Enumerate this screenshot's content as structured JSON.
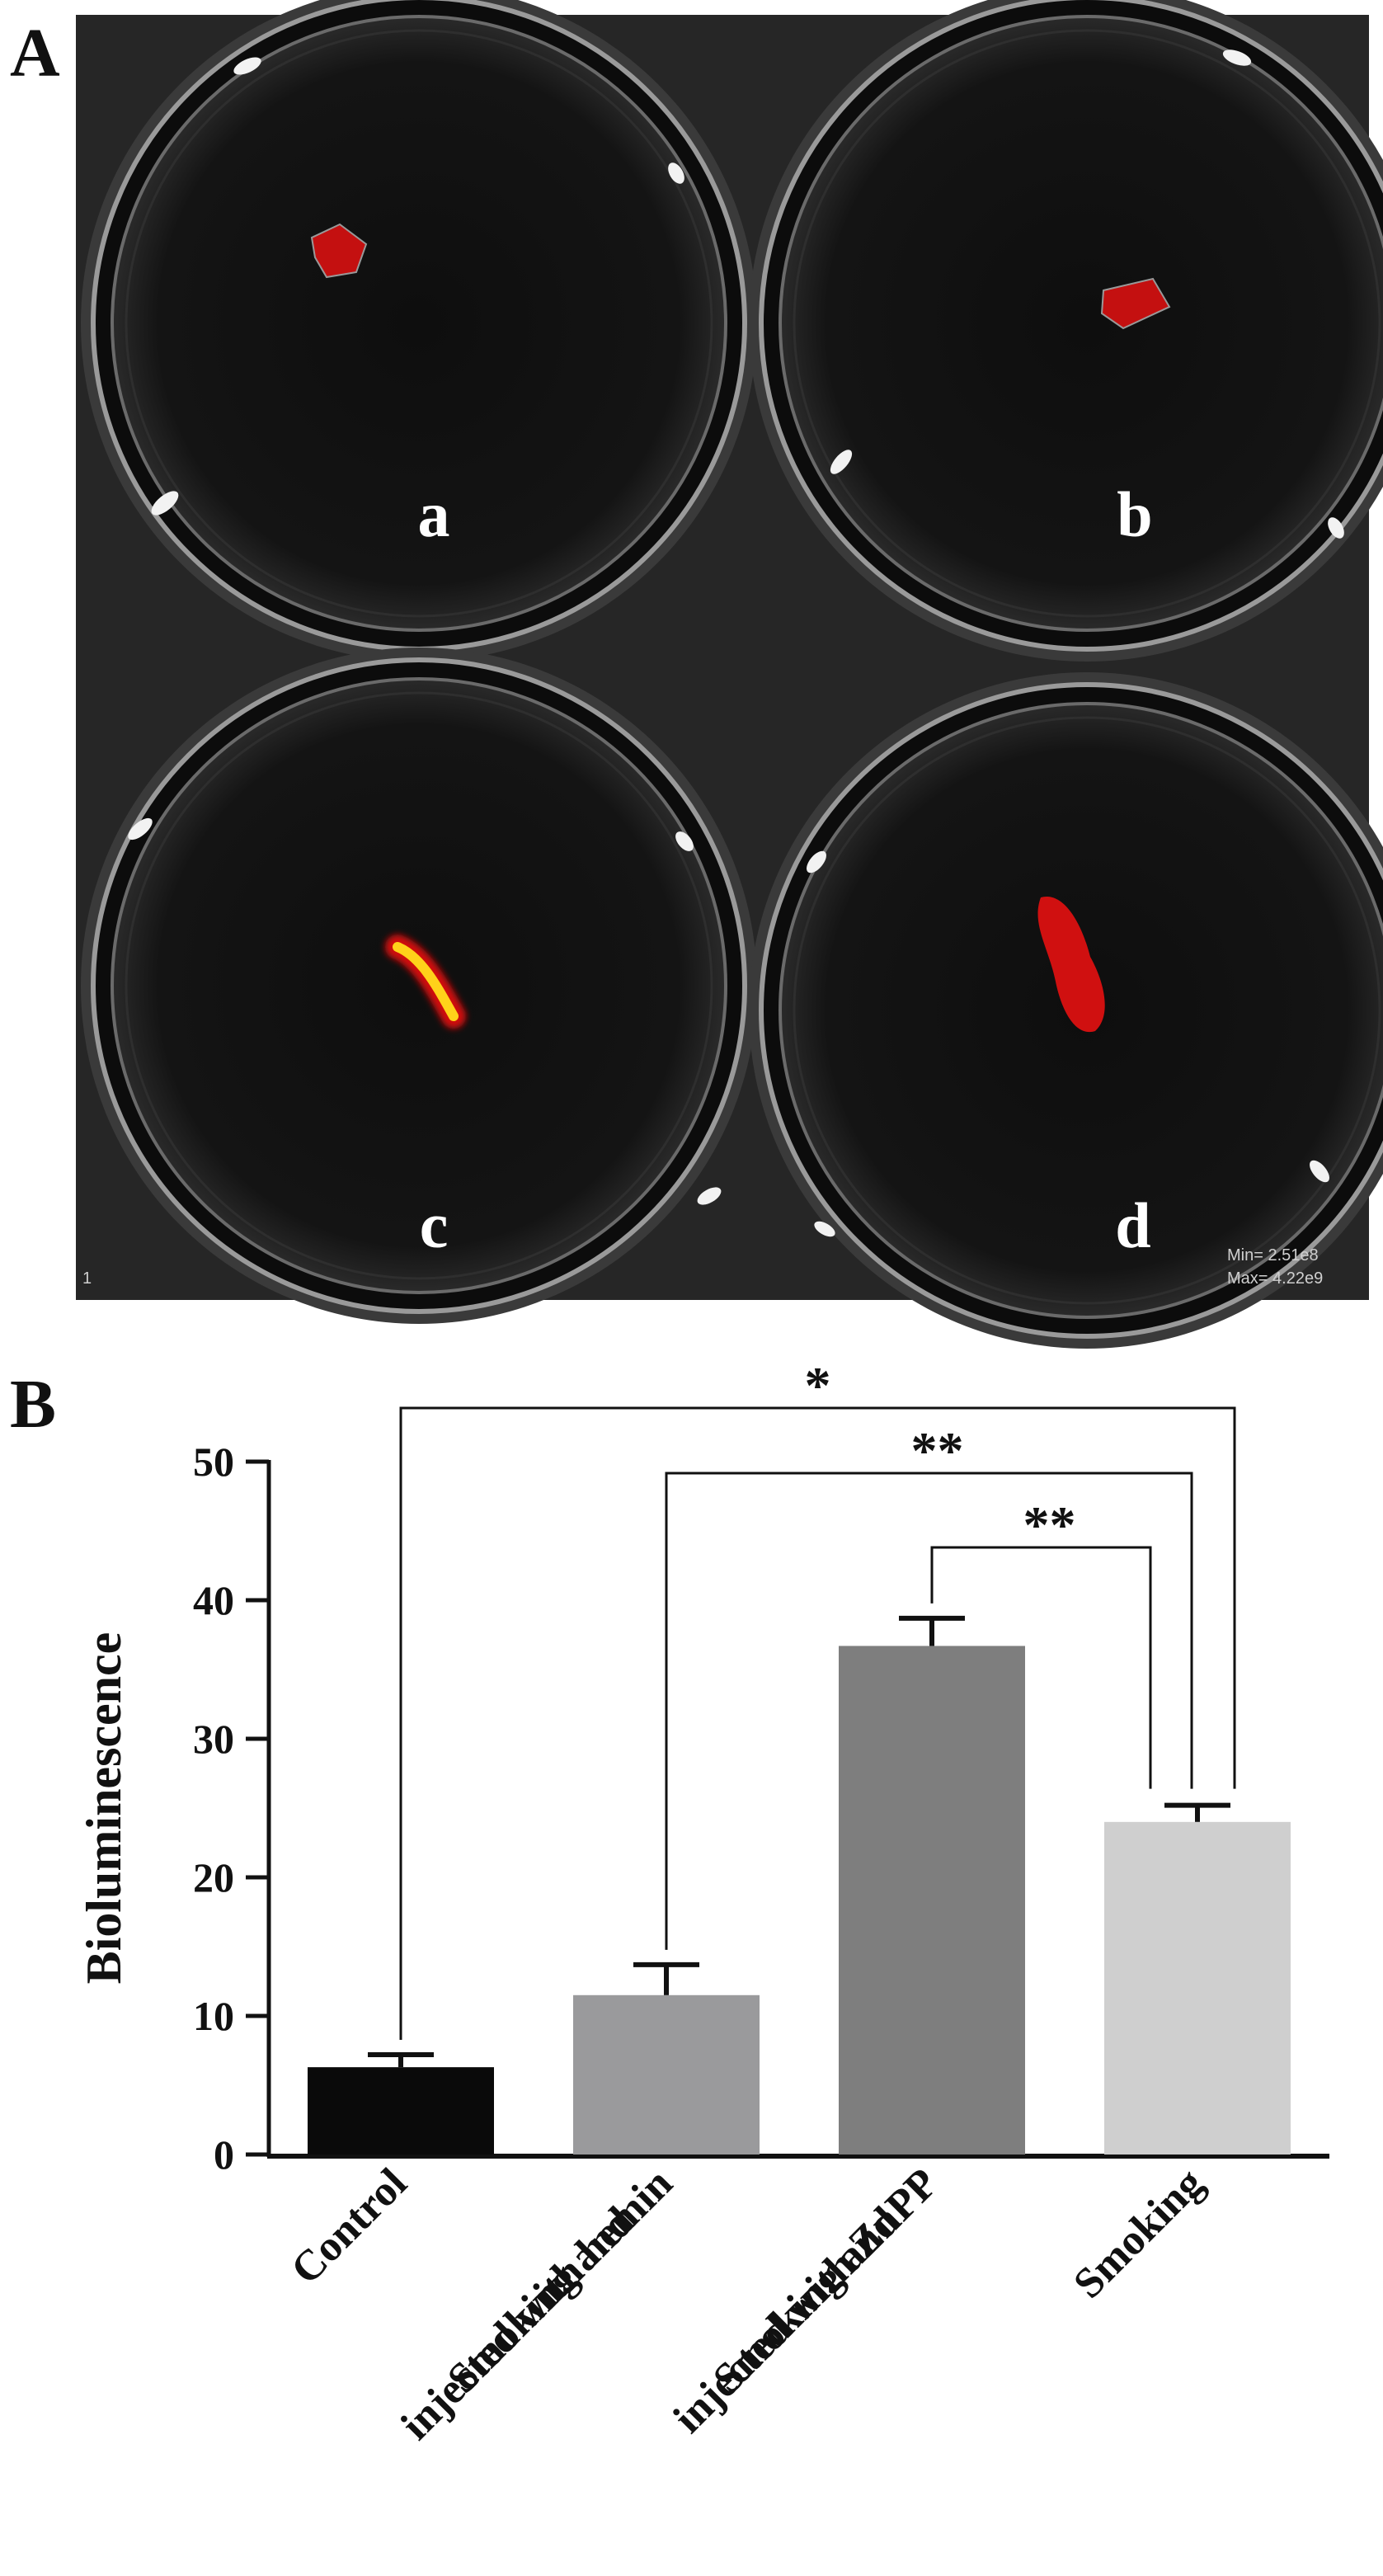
{
  "panel_a": {
    "letter": "A",
    "dish_labels": [
      "a",
      "b",
      "c",
      "d"
    ],
    "scale_min": "Min= 2.51e8",
    "scale_max": "Max= 4.22e9",
    "corner_mark": "1"
  },
  "panel_b": {
    "letter": "B"
  },
  "colors": {
    "bar_control": "#0a0a0a",
    "bar_hemin": "#9a9a9c",
    "bar_znpp": "#7e7e7e",
    "bar_smoking": "#cfcfcf",
    "signal_red": "#d01010",
    "signal_yellow": "#ffd21a"
  },
  "chart_data": {
    "type": "bar",
    "categories": [
      [
        "Control"
      ],
      [
        "Smoking and",
        "injected with hemin"
      ],
      [
        "Smoking and",
        "injected with ZnPP"
      ],
      [
        "Smoking"
      ]
    ],
    "values": [
      6.3,
      11.5,
      36.7,
      24.0
    ],
    "errors": [
      0.9,
      2.2,
      2.0,
      1.2
    ],
    "title": "",
    "xlabel": "",
    "ylabel": "Bioluminescence",
    "ylim": [
      0,
      50
    ],
    "yticks": [
      "0",
      "10",
      "20",
      "30",
      "40",
      "50"
    ],
    "grid": false,
    "significance": [
      {
        "from": 0,
        "to": 3,
        "label": "*"
      },
      {
        "from": 1,
        "to": 3,
        "label": "**"
      },
      {
        "from": 2,
        "to": 3,
        "label": "**"
      }
    ]
  }
}
